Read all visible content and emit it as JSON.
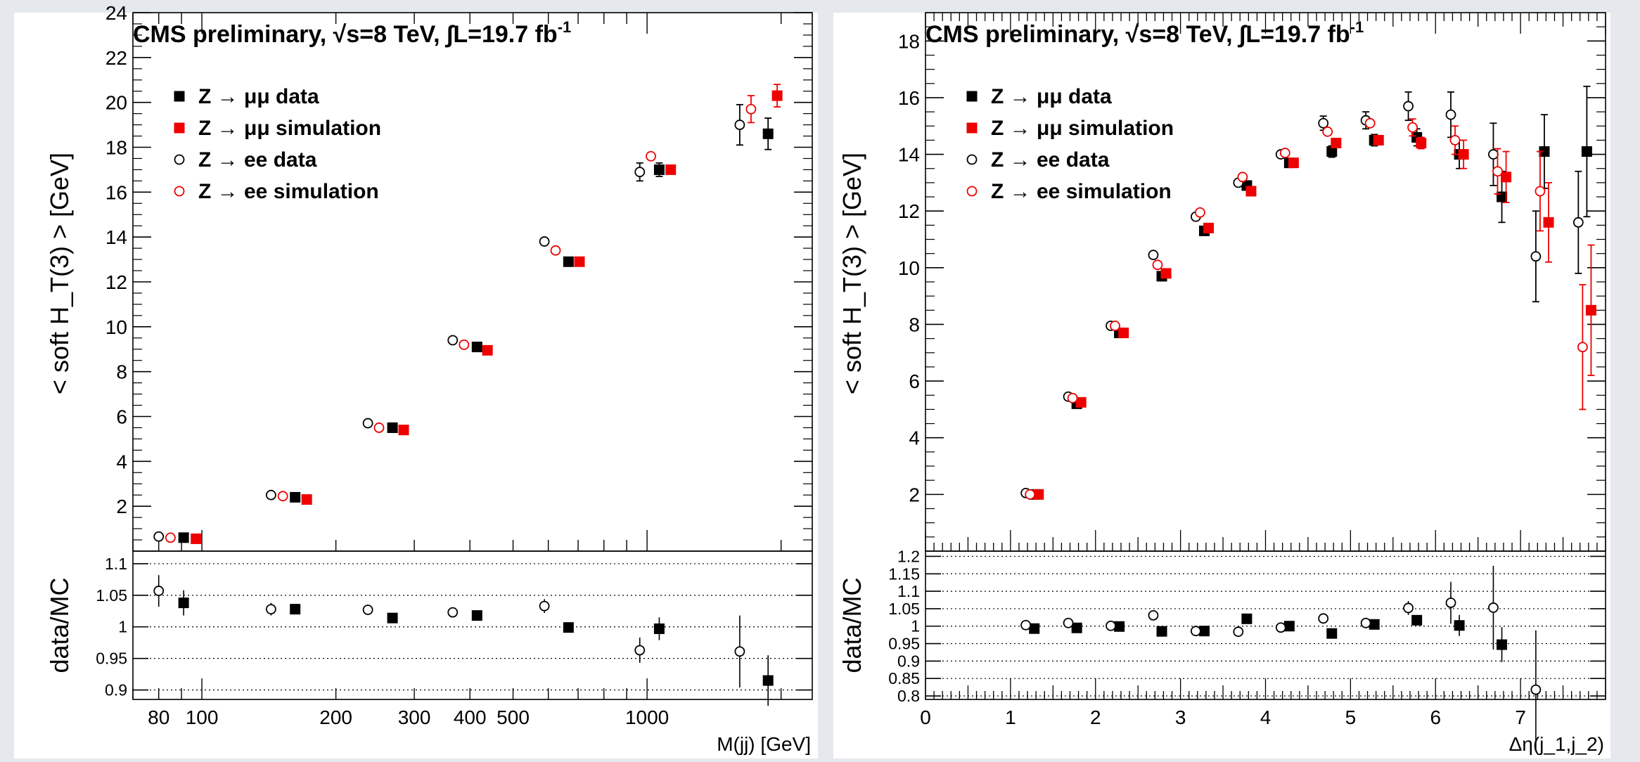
{
  "chart_data": [
    {
      "type": "scatter",
      "title": "CMS preliminary, √s=8 TeV, ∫L=19.7 fb",
      "title_superscript": "-1",
      "ylabel": "< soft H_T(3) > [GeV]",
      "xlabel": "M(jj) [GeV]",
      "ratio_ylabel": "data/MC",
      "xscale": "log",
      "xlim": [
        70,
        2350
      ],
      "ylim": [
        0,
        24
      ],
      "ratio_ylim": [
        0.885,
        1.12
      ],
      "xticks": [
        80,
        100,
        200,
        300,
        400,
        500,
        1000
      ],
      "xtick_labels": [
        "80",
        "100",
        "200",
        "300",
        "400",
        "500",
        "1000"
      ],
      "yticks": [
        2,
        4,
        6,
        8,
        10,
        12,
        14,
        16,
        18,
        20,
        22,
        24
      ],
      "ratio_yticks": [
        0.9,
        0.95,
        1,
        1.05,
        1.1
      ],
      "ratio_ytick_labels": [
        "0.9",
        "0.95",
        "1",
        "1.05",
        "1.1"
      ],
      "grid": "ratio panel only (dotted)",
      "legend_position": "top-left",
      "series": [
        {
          "name": "Z → μμ data",
          "marker": "filled-square",
          "color": "#000000",
          "x": [
            91,
            162,
            268,
            415,
            666,
            1065,
            1870
          ],
          "y": [
            0.6,
            2.4,
            5.5,
            9.1,
            12.9,
            17.0,
            18.6
          ],
          "yerr": [
            0.0,
            0.0,
            0.0,
            0.0,
            0.0,
            0.3,
            0.7
          ]
        },
        {
          "name": "Z → μμ simulation",
          "marker": "filled-square",
          "color": "#ee0000",
          "x": [
            97,
            172,
            284,
            438,
            705,
            1130,
            1960
          ],
          "y": [
            0.55,
            2.3,
            5.4,
            8.95,
            12.9,
            17.0,
            20.3
          ],
          "yerr": [
            0.0,
            0.0,
            0.0,
            0.0,
            0.0,
            0.0,
            0.5
          ]
        },
        {
          "name": "Z → ee data",
          "marker": "open-circle",
          "color": "#000000",
          "x": [
            80,
            143,
            236,
            366,
            588,
            963,
            1615
          ],
          "y": [
            0.65,
            2.5,
            5.7,
            9.4,
            13.8,
            16.9,
            19.0
          ],
          "yerr": [
            0.0,
            0.0,
            0.0,
            0.0,
            0.0,
            0.4,
            0.9
          ]
        },
        {
          "name": "Z → ee simulation",
          "marker": "open-circle",
          "color": "#ee0000",
          "x": [
            85,
            152,
            250,
            388,
            623,
            1020,
            1712
          ],
          "y": [
            0.6,
            2.45,
            5.5,
            9.2,
            13.4,
            17.6,
            19.7
          ],
          "yerr": [
            0.0,
            0.0,
            0.0,
            0.0,
            0.0,
            0.0,
            0.6
          ]
        }
      ],
      "ratio_series": [
        {
          "name": "Z → μμ",
          "marker": "filled-square",
          "x": [
            91,
            162,
            268,
            415,
            666,
            1065,
            1870
          ],
          "y": [
            1.038,
            1.028,
            1.014,
            1.018,
            0.999,
            0.997,
            0.915
          ],
          "yerr": [
            0.02,
            0.0,
            0.0,
            0.0,
            0.0,
            0.018,
            0.04
          ]
        },
        {
          "name": "Z → ee",
          "marker": "open-circle",
          "x": [
            80,
            143,
            236,
            366,
            588,
            963,
            1615
          ],
          "y": [
            1.057,
            1.028,
            1.027,
            1.023,
            1.033,
            0.963,
            0.961
          ],
          "yerr": [
            0.025,
            0.01,
            0.0,
            0.0,
            0.011,
            0.02,
            0.057
          ]
        }
      ]
    },
    {
      "type": "scatter",
      "title": "CMS preliminary, √s=8 TeV, ∫L=19.7 fb",
      "title_superscript": "-1",
      "ylabel": "< soft H_T(3) > [GeV]",
      "xlabel": "Δη(j_1,j_2)",
      "ratio_ylabel": "data/MC",
      "xscale": "linear",
      "xlim": [
        0,
        8
      ],
      "ylim": [
        0,
        19
      ],
      "ratio_ylim": [
        0.79,
        1.215
      ],
      "xticks": [
        0,
        1,
        2,
        3,
        4,
        5,
        6,
        7
      ],
      "yticks": [
        2,
        4,
        6,
        8,
        10,
        12,
        14,
        16,
        18
      ],
      "ratio_yticks": [
        0.8,
        0.85,
        0.9,
        0.95,
        1,
        1.05,
        1.1,
        1.15,
        1.2
      ],
      "ratio_ytick_labels": [
        "0.8",
        "0.85",
        "0.9",
        "0.95",
        "1",
        "1.05",
        "1.1",
        "1.15",
        "1.2"
      ],
      "grid": "ratio panel only (dotted)",
      "legend_position": "top-left",
      "series": [
        {
          "name": "Z → μμ data",
          "marker": "filled-square",
          "color": "#000000",
          "x": [
            1.28,
            1.78,
            2.28,
            2.78,
            3.28,
            3.78,
            4.28,
            4.78,
            5.28,
            5.78,
            6.28,
            6.78,
            7.28,
            7.78
          ],
          "y": [
            2.0,
            5.2,
            7.7,
            9.7,
            11.3,
            12.9,
            13.7,
            14.1,
            14.5,
            14.6,
            14.0,
            12.5,
            14.1,
            14.1
          ],
          "yerr": [
            0,
            0,
            0,
            0,
            0,
            0,
            0,
            0.2,
            0.2,
            0.3,
            0.5,
            0.9,
            1.3,
            2.3
          ]
        },
        {
          "name": "Z → μμ simulation",
          "marker": "filled-square",
          "color": "#ee0000",
          "x": [
            1.33,
            1.83,
            2.33,
            2.83,
            3.33,
            3.83,
            4.33,
            4.83,
            5.33,
            5.83,
            6.33,
            6.83,
            7.33,
            7.83
          ],
          "y": [
            2.0,
            5.25,
            7.7,
            9.8,
            11.4,
            12.7,
            13.7,
            14.4,
            14.5,
            14.4,
            14.0,
            13.2,
            11.6,
            8.5
          ],
          "yerr": [
            0,
            0,
            0,
            0,
            0,
            0,
            0,
            0,
            0,
            0.2,
            0.5,
            0.9,
            1.4,
            2.3
          ]
        },
        {
          "name": "Z → ee data",
          "marker": "open-circle",
          "color": "#000000",
          "x": [
            1.18,
            1.68,
            2.18,
            2.68,
            3.18,
            3.68,
            4.18,
            4.68,
            5.18,
            5.68,
            6.18,
            6.68,
            7.18,
            7.68
          ],
          "y": [
            2.05,
            5.45,
            7.95,
            10.45,
            11.8,
            13.0,
            14.0,
            15.1,
            15.2,
            15.7,
            15.4,
            14.0,
            10.4,
            11.6
          ],
          "yerr": [
            0,
            0,
            0,
            0,
            0,
            0,
            0,
            0.25,
            0.3,
            0.5,
            0.8,
            1.1,
            1.6,
            1.8
          ]
        },
        {
          "name": "Z → ee simulation",
          "marker": "open-circle",
          "color": "#ee0000",
          "x": [
            1.23,
            1.73,
            2.23,
            2.73,
            3.23,
            3.73,
            4.23,
            4.73,
            5.23,
            5.73,
            6.23,
            6.73,
            7.23,
            7.73
          ],
          "y": [
            2.0,
            5.4,
            7.95,
            10.1,
            11.95,
            13.2,
            14.05,
            14.8,
            15.1,
            14.95,
            14.5,
            13.4,
            12.7,
            7.2
          ],
          "yerr": [
            0,
            0,
            0,
            0,
            0,
            0,
            0,
            0,
            0,
            0.3,
            0.5,
            0.8,
            1.4,
            2.2
          ]
        }
      ],
      "ratio_series": [
        {
          "name": "Z → μμ",
          "marker": "filled-square",
          "x": [
            1.28,
            1.78,
            2.28,
            2.78,
            3.28,
            3.78,
            4.28,
            4.78,
            5.28,
            5.78,
            6.28,
            6.78,
            7.28,
            7.78
          ],
          "y": [
            0.993,
            0.995,
            0.999,
            0.985,
            0.986,
            1.021,
            1.0,
            0.979,
            1.005,
            1.017,
            1.002,
            0.947,
            null,
            null
          ],
          "yerr": [
            0,
            0,
            0,
            0,
            0,
            0,
            0,
            0.005,
            0.01,
            0.015,
            0.03,
            0.05,
            0,
            0
          ]
        },
        {
          "name": "Z → ee",
          "marker": "open-circle",
          "x": [
            1.18,
            1.68,
            2.18,
            2.68,
            3.18,
            3.68,
            4.18,
            4.68,
            5.18,
            5.68,
            6.18,
            6.68,
            7.18,
            7.68
          ],
          "y": [
            1.003,
            1.009,
            1.001,
            1.031,
            0.986,
            0.984,
            0.996,
            1.022,
            1.009,
            1.052,
            1.067,
            1.053,
            0.818,
            null
          ],
          "yerr": [
            0,
            0,
            0,
            0,
            0,
            0,
            0,
            0.01,
            0.015,
            0.02,
            0.06,
            0.12,
            0.17,
            0
          ]
        }
      ]
    }
  ]
}
